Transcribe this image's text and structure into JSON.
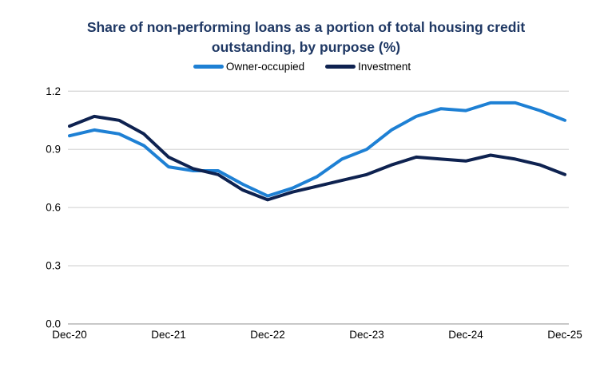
{
  "title": {
    "line1": "Share of non-performing loans as a portion of total housing credit",
    "line2": "outstanding, by purpose (%)"
  },
  "colors": {
    "title_text": "#1F3864",
    "owner_occupied_line": "#1E80D4",
    "investment_line": "#0E2250",
    "gridline": "#D9D9D9",
    "baseline": "#C8C8C8"
  },
  "chart_data": {
    "type": "line",
    "title": "Share of non-performing loans as a portion of total housing credit outstanding, by purpose (%)",
    "x": [
      "Dec-20",
      "Mar-21",
      "Jun-21",
      "Sep-21",
      "Dec-21",
      "Mar-22",
      "Jun-22",
      "Sep-22",
      "Dec-22",
      "Mar-23",
      "Jun-23",
      "Sep-23",
      "Dec-23",
      "Mar-24",
      "Jun-24",
      "Sep-24",
      "Dec-24",
      "Mar-25",
      "Jun-25",
      "Sep-25",
      "Dec-25"
    ],
    "x_tick_labels": [
      "Dec-20",
      "Dec-21",
      "Dec-22",
      "Dec-23",
      "Dec-24",
      "Dec-25"
    ],
    "series": [
      {
        "name": "Owner-occupied",
        "color": "#1E80D4",
        "values": [
          0.97,
          1.0,
          0.98,
          0.92,
          0.81,
          0.79,
          0.79,
          0.72,
          0.66,
          0.7,
          0.76,
          0.85,
          0.9,
          1.0,
          1.07,
          1.11,
          1.1,
          1.14,
          1.14,
          1.1,
          1.05
        ]
      },
      {
        "name": "Investment",
        "color": "#0E2250",
        "values": [
          1.02,
          1.07,
          1.05,
          0.98,
          0.86,
          0.8,
          0.77,
          0.69,
          0.64,
          0.68,
          0.71,
          0.74,
          0.77,
          0.82,
          0.86,
          0.85,
          0.84,
          0.87,
          0.85,
          0.82,
          0.77
        ]
      }
    ],
    "ylim": [
      0.0,
      1.2
    ],
    "yticks": [
      0.0,
      0.3,
      0.6,
      0.9,
      1.2
    ],
    "ytick_format": "one_decimal",
    "grid": "horizontal",
    "legend_position": "top-center"
  }
}
